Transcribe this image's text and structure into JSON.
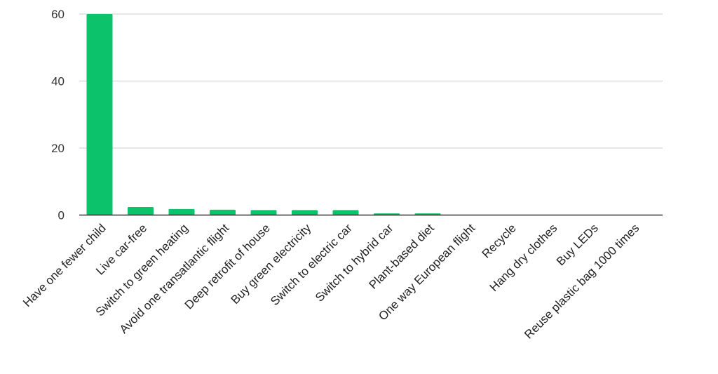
{
  "chart_data": {
    "type": "bar",
    "title": "",
    "xlabel": "",
    "ylabel": "",
    "ylim": [
      0,
      60
    ],
    "y_ticks": [
      0,
      20,
      40,
      60
    ],
    "grid": true,
    "legend": "none",
    "bar_color": "#0cc26a",
    "categories": [
      "Have one fewer child",
      "Live car-free",
      "Switch to green heating",
      "Avoid one transatlantic flight",
      "Deep retrofit of house",
      "Buy green electricity",
      "Switch to electric car",
      "Switch to hybrid car",
      "Plant-based diet",
      "One way European flight",
      "Recycle",
      "Hang dry clothes",
      "Buy LEDs",
      "Reuse plastic bag 1000 times"
    ],
    "values": [
      60,
      2.4,
      1.8,
      1.6,
      1.5,
      1.5,
      1.5,
      0.5,
      0.5,
      0.0,
      0.0,
      0.0,
      0.0,
      0.0
    ]
  }
}
